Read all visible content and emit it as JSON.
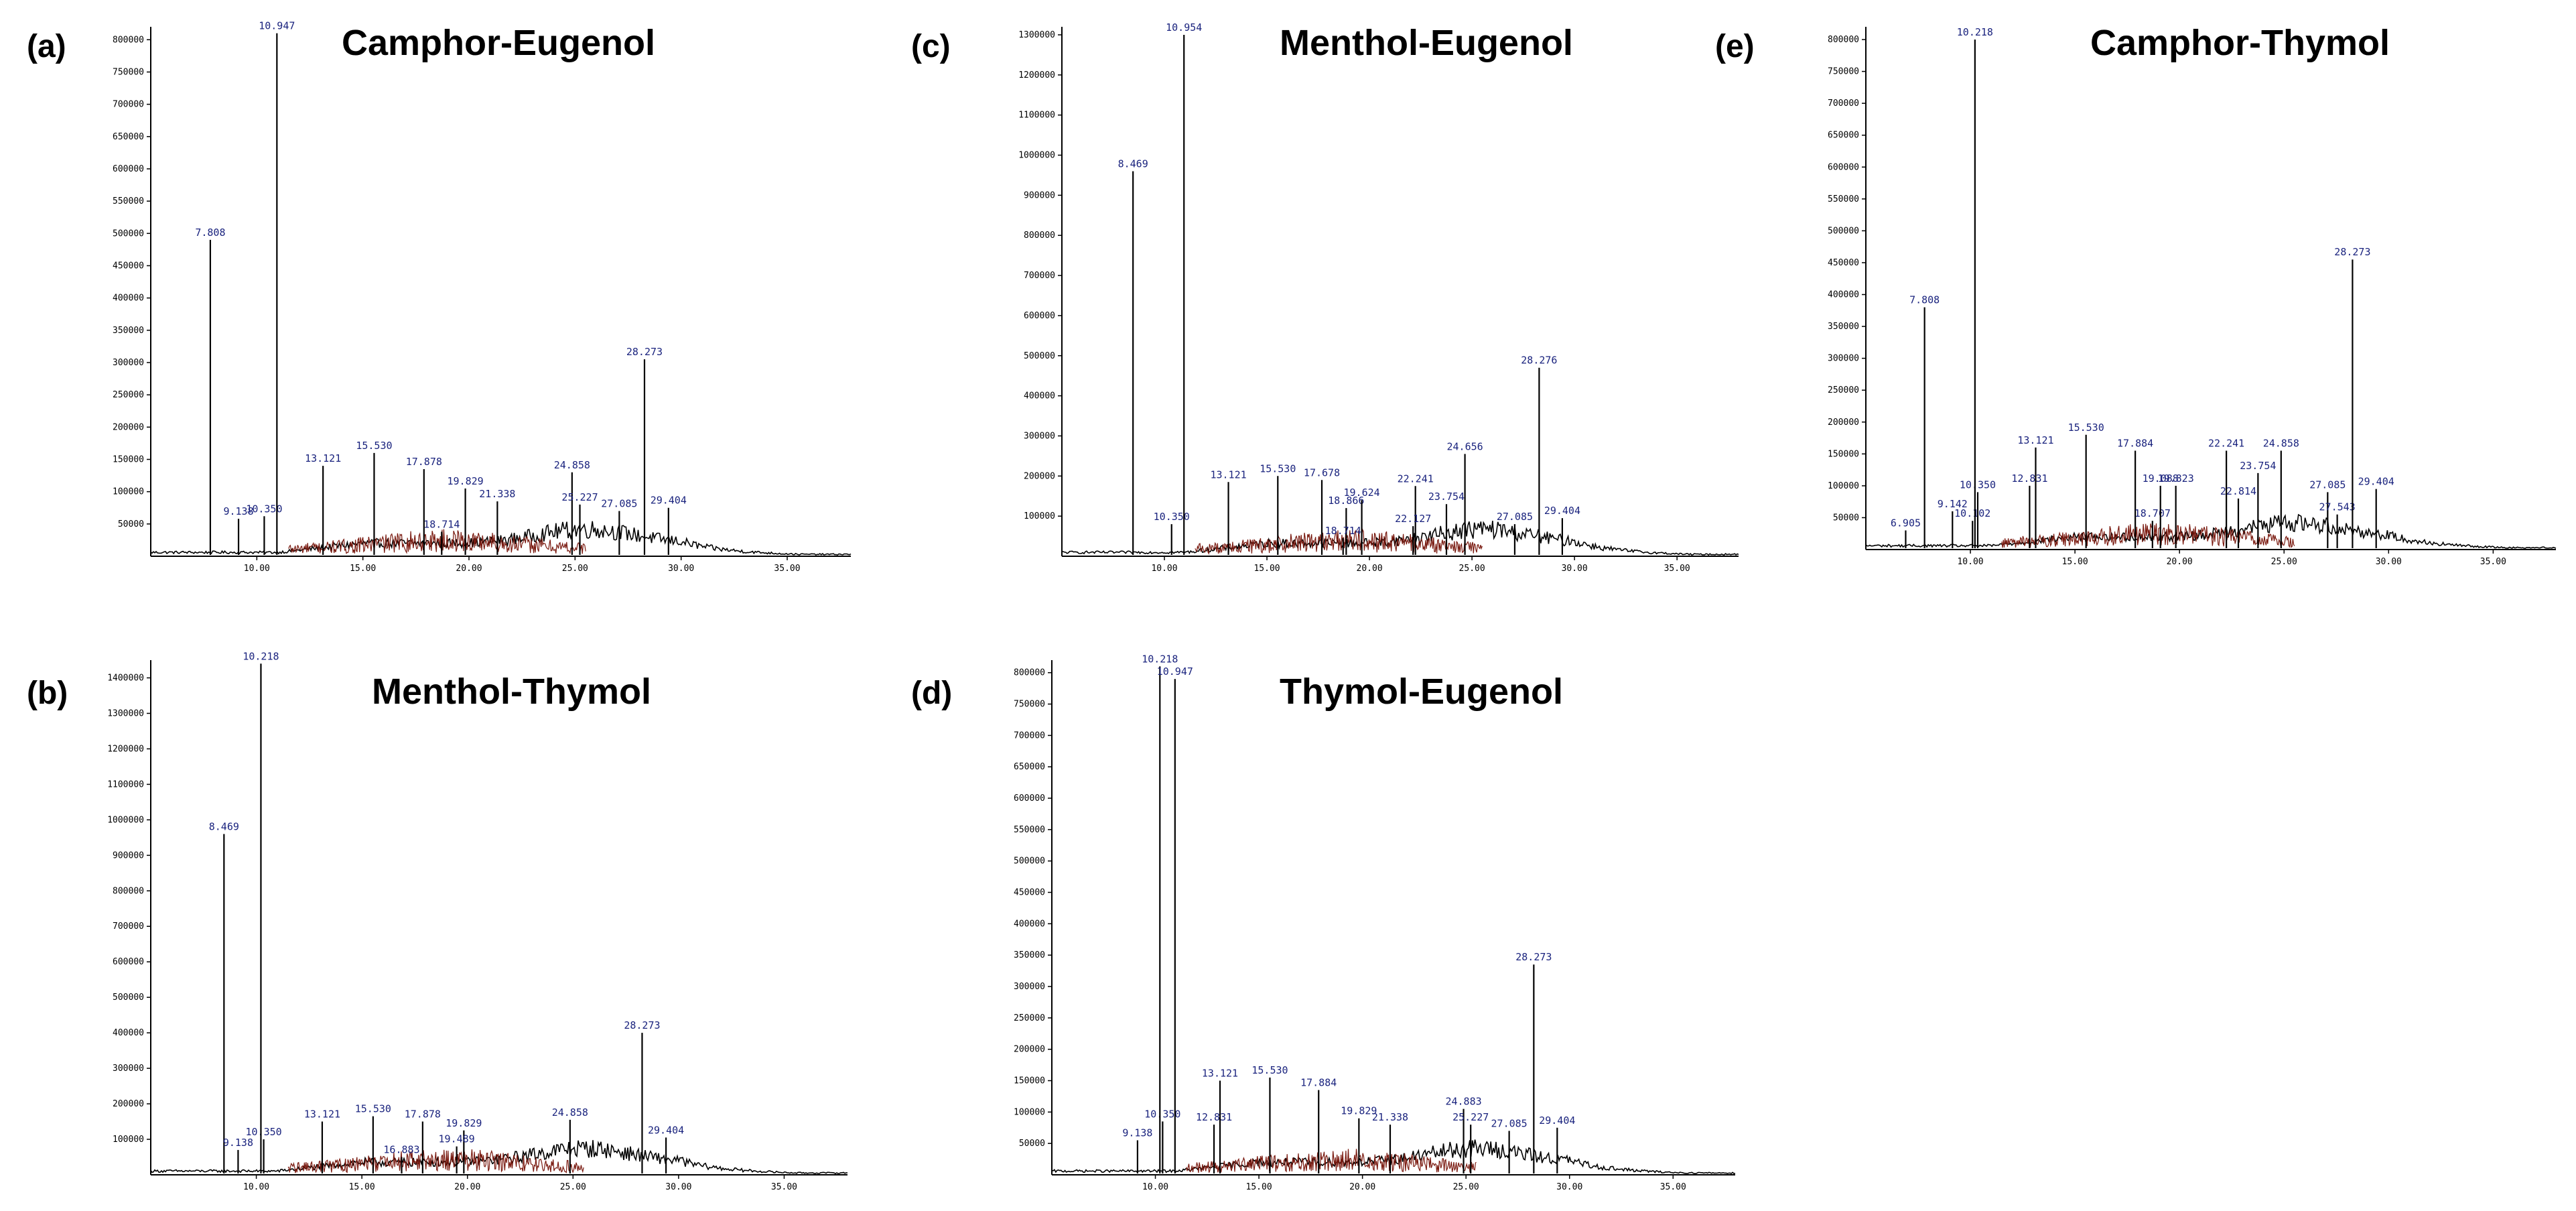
{
  "figure": {
    "description_labels": [
      "(a)",
      "(b)",
      "(c)",
      "(d)",
      "(e)"
    ]
  },
  "chart_data": [
    {
      "type": "line",
      "panel": "(a)",
      "title": "Camphor-Eugenol",
      "xlabel": "",
      "ylabel": "",
      "xlim": [
        5.0,
        38.0
      ],
      "ylim": [
        0,
        820000
      ],
      "xticks": [
        "10.00",
        "15.00",
        "20.00",
        "25.00",
        "30.00",
        "35.00"
      ],
      "xtick_values": [
        10,
        15,
        20,
        25,
        30,
        35
      ],
      "yticks": [
        "50000",
        "100000",
        "150000",
        "200000",
        "250000",
        "300000",
        "350000",
        "400000",
        "450000",
        "500000",
        "550000",
        "600000",
        "650000",
        "700000",
        "750000",
        "800000"
      ],
      "ytick_values": [
        50000,
        100000,
        150000,
        200000,
        250000,
        300000,
        350000,
        400000,
        450000,
        500000,
        550000,
        600000,
        650000,
        700000,
        750000,
        800000
      ],
      "peaks": [
        {
          "rt": 7.808,
          "abundance": 490000,
          "label": "7.808"
        },
        {
          "rt": 9.138,
          "abundance": 58000,
          "label": "9.138"
        },
        {
          "rt": 10.35,
          "abundance": 62000,
          "label": "10.350"
        },
        {
          "rt": 10.947,
          "abundance": 810000,
          "label": "10.947"
        },
        {
          "rt": 13.121,
          "abundance": 140000,
          "label": "13.121"
        },
        {
          "rt": 15.53,
          "abundance": 160000,
          "label": "15.530"
        },
        {
          "rt": 17.878,
          "abundance": 135000,
          "label": "17.878"
        },
        {
          "rt": 19.829,
          "abundance": 105000,
          "label": "19.829"
        },
        {
          "rt": 21.338,
          "abundance": 85000,
          "label": "21.338"
        },
        {
          "rt": 24.858,
          "abundance": 130000,
          "label": "24.858"
        },
        {
          "rt": 25.227,
          "abundance": 80000,
          "label": "25.227"
        },
        {
          "rt": 27.085,
          "abundance": 70000,
          "label": "27.085"
        },
        {
          "rt": 28.273,
          "abundance": 305000,
          "label": "28.273"
        },
        {
          "rt": 29.404,
          "abundance": 75000,
          "label": "29.404"
        },
        {
          "rt": 18.714,
          "abundance": 38000,
          "label": "18.714"
        }
      ]
    },
    {
      "type": "line",
      "panel": "(b)",
      "title": "Menthol-Thymol",
      "xlabel": "",
      "ylabel": "",
      "xlim": [
        5.0,
        38.0
      ],
      "ylim": [
        0,
        1450000
      ],
      "xticks": [
        "10.00",
        "15.00",
        "20.00",
        "25.00",
        "30.00",
        "35.00"
      ],
      "xtick_values": [
        10,
        15,
        20,
        25,
        30,
        35
      ],
      "yticks": [
        "100000",
        "200000",
        "300000",
        "400000",
        "500000",
        "600000",
        "700000",
        "800000",
        "900000",
        "1000000",
        "1100000",
        "1200000",
        "1300000",
        "1400000"
      ],
      "ytick_values": [
        100000,
        200000,
        300000,
        400000,
        500000,
        600000,
        700000,
        800000,
        900000,
        1000000,
        1100000,
        1200000,
        1300000,
        1400000
      ],
      "peaks": [
        {
          "rt": 8.469,
          "abundance": 960000,
          "label": "8.469"
        },
        {
          "rt": 9.138,
          "abundance": 70000,
          "label": "9.138"
        },
        {
          "rt": 10.35,
          "abundance": 100000,
          "label": "10.350"
        },
        {
          "rt": 10.218,
          "abundance": 1440000,
          "label": "10.218"
        },
        {
          "rt": 13.121,
          "abundance": 150000,
          "label": "13.121"
        },
        {
          "rt": 15.53,
          "abundance": 165000,
          "label": "15.530"
        },
        {
          "rt": 17.878,
          "abundance": 150000,
          "label": "17.878"
        },
        {
          "rt": 19.829,
          "abundance": 125000,
          "label": "19.829"
        },
        {
          "rt": 19.489,
          "abundance": 80000,
          "label": "19.489"
        },
        {
          "rt": 16.883,
          "abundance": 50000,
          "label": "16.883"
        },
        {
          "rt": 24.858,
          "abundance": 155000,
          "label": "24.858"
        },
        {
          "rt": 28.273,
          "abundance": 400000,
          "label": "28.273"
        },
        {
          "rt": 29.404,
          "abundance": 105000,
          "label": "29.404"
        }
      ]
    },
    {
      "type": "line",
      "panel": "(c)",
      "title": "Menthol-Eugenol",
      "xlabel": "",
      "ylabel": "",
      "xlim": [
        5.0,
        38.0
      ],
      "ylim": [
        0,
        1320000
      ],
      "xticks": [
        "10.00",
        "15.00",
        "20.00",
        "25.00",
        "30.00",
        "35.00"
      ],
      "xtick_values": [
        10,
        15,
        20,
        25,
        30,
        35
      ],
      "yticks": [
        "100000",
        "200000",
        "300000",
        "400000",
        "500000",
        "600000",
        "700000",
        "800000",
        "900000",
        "1000000",
        "1100000",
        "1200000",
        "1300000"
      ],
      "ytick_values": [
        100000,
        200000,
        300000,
        400000,
        500000,
        600000,
        700000,
        800000,
        900000,
        1000000,
        1100000,
        1200000,
        1300000
      ],
      "peaks": [
        {
          "rt": 8.469,
          "abundance": 960000,
          "label": "8.469"
        },
        {
          "rt": 10.35,
          "abundance": 80000,
          "label": "10.350"
        },
        {
          "rt": 10.954,
          "abundance": 1300000,
          "label": "10.954"
        },
        {
          "rt": 13.121,
          "abundance": 185000,
          "label": "13.121"
        },
        {
          "rt": 15.53,
          "abundance": 200000,
          "label": "15.530"
        },
        {
          "rt": 17.678,
          "abundance": 190000,
          "label": "17.678"
        },
        {
          "rt": 18.866,
          "abundance": 120000,
          "label": "18.866"
        },
        {
          "rt": 19.624,
          "abundance": 140000,
          "label": "19.624"
        },
        {
          "rt": 22.241,
          "abundance": 175000,
          "label": "22.241"
        },
        {
          "rt": 22.127,
          "abundance": 75000,
          "label": "22.127"
        },
        {
          "rt": 18.714,
          "abundance": 45000,
          "label": "18.714"
        },
        {
          "rt": 23.754,
          "abundance": 130000,
          "label": "23.754"
        },
        {
          "rt": 24.656,
          "abundance": 255000,
          "label": "24.656"
        },
        {
          "rt": 27.085,
          "abundance": 80000,
          "label": "27.085"
        },
        {
          "rt": 28.276,
          "abundance": 470000,
          "label": "28.276"
        },
        {
          "rt": 29.404,
          "abundance": 95000,
          "label": "29.404"
        }
      ]
    },
    {
      "type": "line",
      "panel": "(d)",
      "title": "Thymol-Eugenol",
      "xlabel": "",
      "ylabel": "",
      "xlim": [
        5.0,
        38.0
      ],
      "ylim": [
        0,
        820000
      ],
      "xticks": [
        "10.00",
        "15.00",
        "20.00",
        "25.00",
        "30.00",
        "35.00"
      ],
      "xtick_values": [
        10,
        15,
        20,
        25,
        30,
        35
      ],
      "yticks": [
        "50000",
        "100000",
        "150000",
        "200000",
        "250000",
        "300000",
        "350000",
        "400000",
        "450000",
        "500000",
        "550000",
        "600000",
        "650000",
        "700000",
        "750000",
        "800000"
      ],
      "ytick_values": [
        50000,
        100000,
        150000,
        200000,
        250000,
        300000,
        350000,
        400000,
        450000,
        500000,
        550000,
        600000,
        650000,
        700000,
        750000,
        800000
      ],
      "peaks": [
        {
          "rt": 9.138,
          "abundance": 55000,
          "label": "9.138"
        },
        {
          "rt": 10.35,
          "abundance": 85000,
          "label": "10.350"
        },
        {
          "rt": 10.218,
          "abundance": 810000,
          "label": "10.218"
        },
        {
          "rt": 10.947,
          "abundance": 790000,
          "label": "10.947"
        },
        {
          "rt": 12.831,
          "abundance": 80000,
          "label": "12.831"
        },
        {
          "rt": 13.121,
          "abundance": 150000,
          "label": "13.121"
        },
        {
          "rt": 15.53,
          "abundance": 155000,
          "label": "15.530"
        },
        {
          "rt": 17.884,
          "abundance": 135000,
          "label": "17.884"
        },
        {
          "rt": 19.829,
          "abundance": 90000,
          "label": "19.829"
        },
        {
          "rt": 21.338,
          "abundance": 80000,
          "label": "21.338"
        },
        {
          "rt": 24.883,
          "abundance": 105000,
          "label": "24.883"
        },
        {
          "rt": 25.227,
          "abundance": 80000,
          "label": "25.227"
        },
        {
          "rt": 27.085,
          "abundance": 70000,
          "label": "27.085"
        },
        {
          "rt": 28.273,
          "abundance": 335000,
          "label": "28.273"
        },
        {
          "rt": 29.404,
          "abundance": 75000,
          "label": "29.404"
        }
      ]
    },
    {
      "type": "line",
      "panel": "(e)",
      "title": "Camphor-Thymol",
      "xlabel": "",
      "ylabel": "",
      "xlim": [
        5.0,
        38.0
      ],
      "ylim": [
        0,
        820000
      ],
      "xticks": [
        "10.00",
        "15.00",
        "20.00",
        "25.00",
        "30.00",
        "35.00"
      ],
      "xtick_values": [
        10,
        15,
        20,
        25,
        30,
        35
      ],
      "yticks": [
        "50000",
        "100000",
        "150000",
        "200000",
        "250000",
        "300000",
        "350000",
        "400000",
        "450000",
        "500000",
        "550000",
        "600000",
        "650000",
        "700000",
        "750000",
        "800000"
      ],
      "ytick_values": [
        50000,
        100000,
        150000,
        200000,
        250000,
        300000,
        350000,
        400000,
        450000,
        500000,
        550000,
        600000,
        650000,
        700000,
        750000,
        800000
      ],
      "peaks": [
        {
          "rt": 6.905,
          "abundance": 30000,
          "label": "6.905"
        },
        {
          "rt": 7.808,
          "abundance": 380000,
          "label": "7.808"
        },
        {
          "rt": 9.142,
          "abundance": 60000,
          "label": "9.142"
        },
        {
          "rt": 10.102,
          "abundance": 45000,
          "label": "10.102"
        },
        {
          "rt": 10.35,
          "abundance": 90000,
          "label": "10.350"
        },
        {
          "rt": 10.218,
          "abundance": 800000,
          "label": "10.218"
        },
        {
          "rt": 12.831,
          "abundance": 100000,
          "label": "12.831"
        },
        {
          "rt": 13.121,
          "abundance": 160000,
          "label": "13.121"
        },
        {
          "rt": 15.53,
          "abundance": 180000,
          "label": "15.530"
        },
        {
          "rt": 17.884,
          "abundance": 155000,
          "label": "17.884"
        },
        {
          "rt": 18.707,
          "abundance": 45000,
          "label": "18.707"
        },
        {
          "rt": 19.088,
          "abundance": 100000,
          "label": "19.088"
        },
        {
          "rt": 19.823,
          "abundance": 100000,
          "label": "19.823"
        },
        {
          "rt": 22.241,
          "abundance": 155000,
          "label": "22.241"
        },
        {
          "rt": 22.814,
          "abundance": 80000,
          "label": "22.814"
        },
        {
          "rt": 23.754,
          "abundance": 120000,
          "label": "23.754"
        },
        {
          "rt": 24.858,
          "abundance": 155000,
          "label": "24.858"
        },
        {
          "rt": 27.085,
          "abundance": 90000,
          "label": "27.085"
        },
        {
          "rt": 27.543,
          "abundance": 55000,
          "label": "27.543"
        },
        {
          "rt": 28.273,
          "abundance": 455000,
          "label": "28.273"
        },
        {
          "rt": 29.404,
          "abundance": 95000,
          "label": "29.404"
        }
      ]
    }
  ]
}
